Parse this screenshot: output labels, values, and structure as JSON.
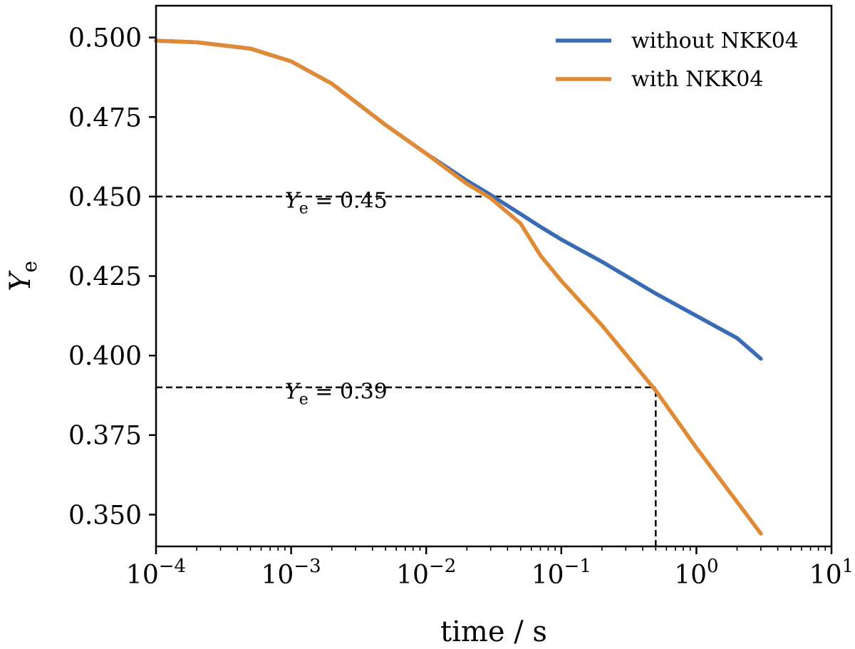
{
  "chart_data": {
    "type": "line",
    "xscale": "log",
    "xlim": [
      0.0001,
      10
    ],
    "ylim": [
      0.34,
      0.51
    ],
    "xlabel": "time / s",
    "ylabel": "Y",
    "ylabel_sub": "e",
    "x_ticks": [
      {
        "value": 0.0001,
        "base": "10",
        "exp": "−4"
      },
      {
        "value": 0.001,
        "base": "10",
        "exp": "−3"
      },
      {
        "value": 0.01,
        "base": "10",
        "exp": "−2"
      },
      {
        "value": 0.1,
        "base": "10",
        "exp": "−1"
      },
      {
        "value": 1,
        "base": "10",
        "exp": "0"
      },
      {
        "value": 10,
        "base": "10",
        "exp": "1"
      }
    ],
    "y_ticks": [
      {
        "value": 0.35,
        "label": "0.350"
      },
      {
        "value": 0.375,
        "label": "0.375"
      },
      {
        "value": 0.4,
        "label": "0.400"
      },
      {
        "value": 0.425,
        "label": "0.425"
      },
      {
        "value": 0.45,
        "label": "0.450"
      },
      {
        "value": 0.475,
        "label": "0.475"
      },
      {
        "value": 0.5,
        "label": "0.500"
      }
    ],
    "legend_position": "top-right",
    "series": [
      {
        "name": "without NKK04",
        "color": "#3a6bb5",
        "x": [
          0.0001,
          0.0002,
          0.0005,
          0.001,
          0.002,
          0.005,
          0.01,
          0.02,
          0.03,
          0.05,
          0.07,
          0.1,
          0.2,
          0.5,
          1,
          2,
          3
        ],
        "y": [
          0.499,
          0.4985,
          0.4965,
          0.4925,
          0.4855,
          0.4725,
          0.4635,
          0.455,
          0.4505,
          0.4445,
          0.4405,
          0.4365,
          0.4295,
          0.4195,
          0.4125,
          0.4055,
          0.399
        ]
      },
      {
        "name": "with NKK04",
        "color": "#e08a36",
        "x": [
          0.0001,
          0.0002,
          0.0005,
          0.001,
          0.002,
          0.005,
          0.01,
          0.02,
          0.03,
          0.05,
          0.07,
          0.1,
          0.2,
          0.5,
          1,
          2,
          3
        ],
        "y": [
          0.499,
          0.4985,
          0.4965,
          0.4925,
          0.4855,
          0.4725,
          0.4635,
          0.454,
          0.4495,
          0.4415,
          0.4315,
          0.4235,
          0.4095,
          0.389,
          0.371,
          0.354,
          0.344
        ]
      }
    ],
    "reference_lines": [
      {
        "type": "horizontal",
        "y": 0.45,
        "x_from": 0.0001,
        "x_to": 10
      },
      {
        "type": "horizontal",
        "y": 0.39,
        "x_from": 0.0001,
        "x_to": 0.5
      },
      {
        "type": "vertical",
        "x": 0.5,
        "y_from": 0.34,
        "y_to": 0.39
      }
    ],
    "annotations": [
      {
        "text_var": "Y",
        "text_sub": "e",
        "text_rest": " = 0.45",
        "x": 0.0009,
        "y": 0.4465
      },
      {
        "text_var": "Y",
        "text_sub": "e",
        "text_rest": " = 0.39",
        "x": 0.0009,
        "y": 0.3865
      }
    ]
  }
}
